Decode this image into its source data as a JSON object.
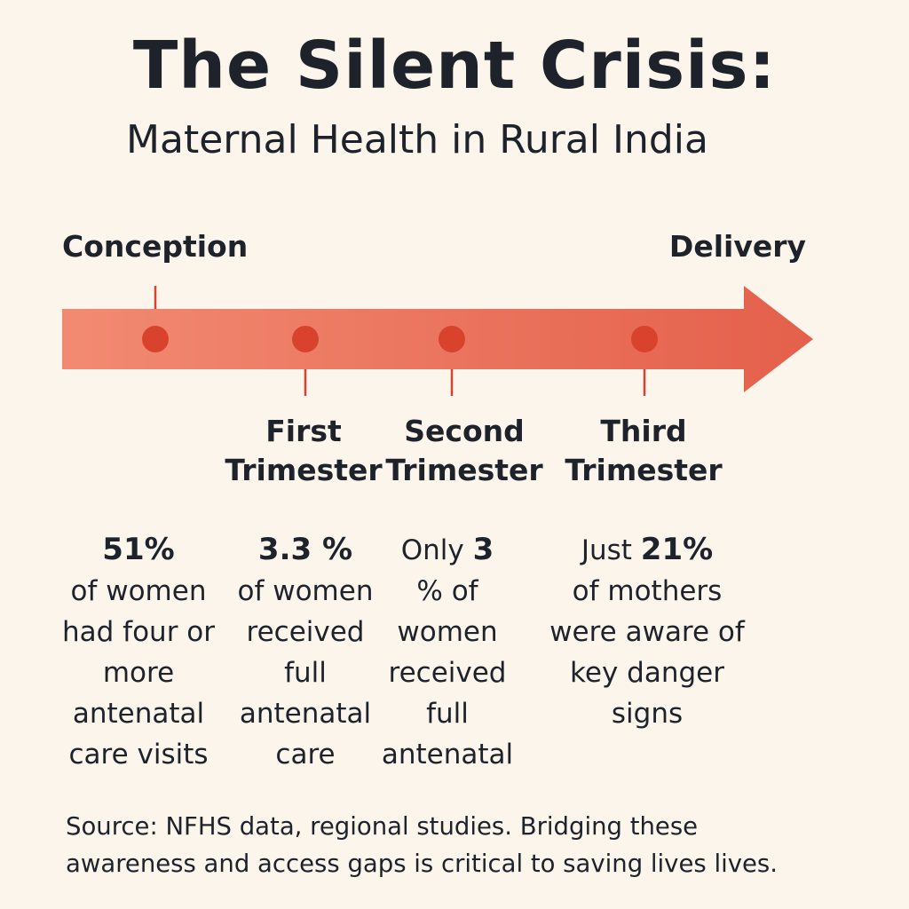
{
  "title": "The Silent Crisis:",
  "subtitle": "Maternal Health in Rural India",
  "timeline": {
    "start_label": "Conception",
    "end_label": "Delivery",
    "colors": {
      "arrow_start": "#f28a72",
      "arrow_end": "#e4604b",
      "dot": "#d9432e",
      "tick": "#d9432e"
    }
  },
  "stages": [
    {
      "line1": "First",
      "line2": "Trimester"
    },
    {
      "line1": "Second",
      "line2": "Trimester"
    },
    {
      "line1": "Third",
      "line2": "Trimester"
    }
  ],
  "stats": [
    {
      "prefix": "",
      "value": "51%",
      "text": "of women had four or more antenatal care visits"
    },
    {
      "prefix": "",
      "value": "3.3 %",
      "text": "of women received full antenatal care"
    },
    {
      "prefix": "Only ",
      "value": "3",
      "text": "% of women received full antenatal"
    },
    {
      "prefix": "Just ",
      "value": "21%",
      "text": "of mothers were aware of key danger signs"
    }
  ],
  "source": "Source: NFHS data, regional studies. Bridging these awareness and access gaps is critical to saving lives lives."
}
